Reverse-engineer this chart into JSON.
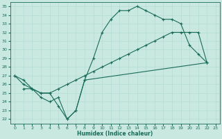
{
  "xlabel": "Humidex (Indice chaleur)",
  "bg_color": "#c8e8e0",
  "line_color": "#1a6b5a",
  "grid_color": "#b0d8d0",
  "xlim": [
    -0.5,
    23.5
  ],
  "ylim": [
    21.5,
    35.5
  ],
  "xticks": [
    0,
    1,
    2,
    3,
    4,
    5,
    6,
    7,
    8,
    9,
    10,
    11,
    12,
    13,
    14,
    15,
    16,
    17,
    18,
    19,
    20,
    21,
    22,
    23
  ],
  "yticks": [
    22,
    23,
    24,
    25,
    26,
    27,
    28,
    29,
    30,
    31,
    32,
    33,
    34,
    35
  ],
  "line1_x": [
    0,
    1,
    2,
    3,
    4,
    5,
    6,
    7,
    8,
    9,
    10,
    11,
    12,
    13,
    14,
    15,
    16,
    17,
    18,
    19,
    20,
    21,
    22
  ],
  "line1_y": [
    27.0,
    26.5,
    25.5,
    25.0,
    25.0,
    23.5,
    22.0,
    23.0,
    26.5,
    29.0,
    32.0,
    33.5,
    34.5,
    34.5,
    35.0,
    34.5,
    34.0,
    33.5,
    33.5,
    33.0,
    30.5,
    29.5,
    28.5
  ],
  "line2_x": [
    0,
    1,
    2,
    3,
    4,
    5,
    6,
    7,
    8,
    22
  ],
  "line2_y": [
    27.0,
    26.0,
    25.5,
    24.5,
    24.0,
    24.5,
    22.0,
    23.0,
    26.5,
    28.5
  ],
  "line3_x": [
    1,
    2,
    3,
    4,
    5,
    6,
    7,
    8,
    9,
    10,
    11,
    12,
    13,
    14,
    15,
    16,
    17,
    18,
    19,
    20,
    21,
    22
  ],
  "line3_y": [
    25.5,
    25.5,
    25.0,
    25.0,
    25.5,
    26.0,
    26.5,
    27.0,
    27.5,
    28.0,
    28.5,
    29.0,
    29.5,
    30.0,
    30.5,
    31.0,
    31.5,
    32.0,
    32.0,
    32.0,
    32.0,
    28.5
  ]
}
